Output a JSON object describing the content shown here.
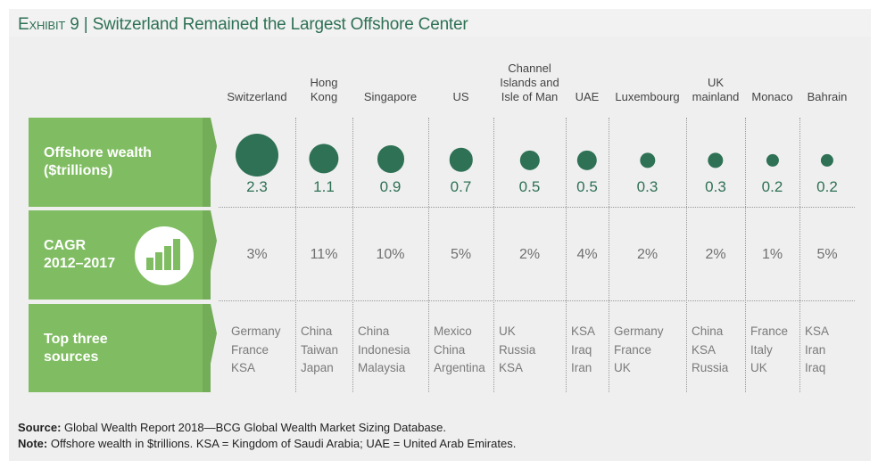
{
  "title": {
    "exhibit": "Exhibit 9",
    "separator": "|",
    "text": "Switzerland Remained the Largest Offshore Center"
  },
  "rows": {
    "wealth_label": "Offshore wealth\n($trillions)",
    "cagr_label": "CAGR\n2012–2017",
    "sources_label": "Top three\nsources",
    "cagr_icon": "bar-chart-icon"
  },
  "chart_data": {
    "type": "table",
    "title": "Switzerland Remained the Largest Offshore Center",
    "columns": [
      "Switzerland",
      "Hong\nKong",
      "Singapore",
      "US",
      "Channel\nIslands and\nIsle of Man",
      "UAE",
      "Luxembourg",
      "UK\nmainland",
      "Monaco",
      "Bahrain"
    ],
    "offshore_wealth_trillions": [
      2.3,
      1.1,
      0.9,
      0.7,
      0.5,
      0.5,
      0.3,
      0.3,
      0.2,
      0.2
    ],
    "offshore_wealth_labels": [
      "2.3",
      "1.1",
      "0.9",
      "0.7",
      "0.5",
      "0.5",
      "0.3",
      "0.3",
      "0.2",
      "0.2"
    ],
    "cagr_2012_2017": [
      "3%",
      "11%",
      "10%",
      "5%",
      "2%",
      "4%",
      "2%",
      "2%",
      "1%",
      "5%"
    ],
    "top_three_sources": [
      [
        "Germany",
        "France",
        "KSA"
      ],
      [
        "China",
        "Taiwan",
        "Japan"
      ],
      [
        "China",
        "Indonesia",
        "Malaysia"
      ],
      [
        "Mexico",
        "China",
        "Argentina"
      ],
      [
        "UK",
        "Russia",
        "KSA"
      ],
      [
        "KSA",
        "Iraq",
        "Iran"
      ],
      [
        "Germany",
        "France",
        "UK"
      ],
      [
        "China",
        "KSA",
        "Russia"
      ],
      [
        "France",
        "Italy",
        "UK"
      ],
      [
        "KSA",
        "Iran",
        "Iraq"
      ]
    ],
    "bubble_color": "#2e7155"
  },
  "footer": {
    "source_label": "Source:",
    "source_text": " Global Wealth Report 2018—BCG Global Wealth Market Sizing Database.",
    "note_label": "Note:",
    "note_text": " Offshore wealth in $trillions. KSA = Kingdom of Saudi Arabia; UAE = United Arab Emirates."
  },
  "colors": {
    "title": "#2e7155",
    "label_box": "#80bd62",
    "bubble": "#2e7155",
    "panel": "#efefef"
  }
}
